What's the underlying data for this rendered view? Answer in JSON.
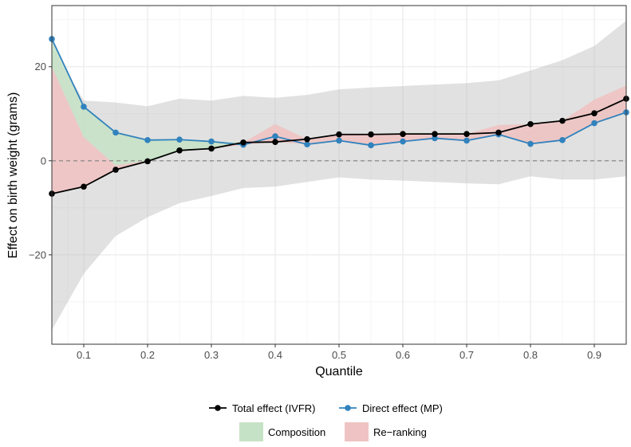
{
  "chart_data": {
    "type": "line",
    "xlabel": "Quantile",
    "ylabel": "Effect on birth weight (grams)",
    "xlim": [
      0.05,
      0.95
    ],
    "ylim": [
      -39,
      33
    ],
    "x_ticks": [
      0.1,
      0.2,
      0.3,
      0.4,
      0.5,
      0.6,
      0.7,
      0.8,
      0.9
    ],
    "x_tick_labels": [
      "0.1",
      "0.2",
      "0.3",
      "0.4",
      "0.5",
      "0.6",
      "0.7",
      "0.8",
      "0.9"
    ],
    "y_ticks": [
      -20,
      0,
      20
    ],
    "y_tick_labels": [
      "−20",
      "0",
      "20"
    ],
    "grid": true,
    "reference_line": {
      "y": 0,
      "style": "dashed"
    },
    "legend_position": "bottom",
    "x": [
      0.05,
      0.1,
      0.15,
      0.2,
      0.25,
      0.3,
      0.35,
      0.4,
      0.45,
      0.5,
      0.55,
      0.6,
      0.65,
      0.7,
      0.75,
      0.8,
      0.85,
      0.9,
      0.95
    ],
    "series": [
      {
        "name": "Total effect (IVFR)",
        "color": "#000000",
        "values": [
          -7.0,
          -5.5,
          -1.9,
          -0.1,
          2.2,
          2.6,
          3.9,
          4.0,
          4.6,
          5.6,
          5.6,
          5.7,
          5.7,
          5.7,
          6.0,
          7.8,
          8.5,
          10.1,
          13.2
        ]
      },
      {
        "name": "Direct effect (MP)",
        "color": "#3182bd",
        "values": [
          25.9,
          11.5,
          6.0,
          4.4,
          4.5,
          4.1,
          3.4,
          5.2,
          3.5,
          4.3,
          3.3,
          4.1,
          4.8,
          4.3,
          5.6,
          3.6,
          4.4,
          8.0,
          10.3
        ]
      }
    ],
    "confidence_band": {
      "color": "#bdbdbd",
      "lower": [
        -36.0,
        -24.0,
        -16.0,
        -12.0,
        -9.0,
        -7.5,
        -5.8,
        -5.5,
        -4.5,
        -3.5,
        -4.0,
        -4.2,
        -4.5,
        -4.8,
        -5.0,
        -3.3,
        -4.0,
        -4.0,
        -3.3
      ],
      "upper": [
        24.0,
        12.8,
        12.4,
        11.6,
        13.2,
        12.8,
        13.8,
        13.4,
        14.0,
        15.2,
        15.6,
        15.9,
        16.2,
        16.5,
        17.1,
        19.2,
        21.4,
        24.4,
        29.8
      ]
    },
    "components": [
      {
        "name": "Composition",
        "color": "#c6e2c6",
        "lower": [
          20.0,
          5.0,
          -1.0,
          0.0,
          2.2,
          2.6,
          3.4,
          4.0,
          3.5,
          4.3,
          3.3,
          4.1,
          4.8,
          4.3,
          5.6,
          3.6,
          4.4,
          8.0,
          10.3
        ],
        "upper": [
          25.9,
          11.5,
          6.0,
          4.4,
          4.5,
          4.1,
          3.9,
          4.0,
          4.6,
          4.3,
          3.3,
          4.1,
          4.8,
          4.3,
          5.6,
          6.5,
          8.5,
          11.0,
          13.2
        ]
      },
      {
        "name": "Re−ranking",
        "color": "#efc3c3",
        "lower": [
          -7.0,
          -5.5,
          -1.9,
          -0.1,
          2.2,
          2.6,
          3.4,
          4.0,
          3.5,
          4.3,
          3.3,
          4.1,
          4.8,
          4.3,
          5.6,
          3.6,
          4.4,
          8.0,
          10.3
        ],
        "upper": [
          20.0,
          5.0,
          -1.0,
          0.0,
          2.2,
          2.6,
          3.9,
          7.8,
          4.6,
          5.6,
          5.6,
          5.7,
          5.7,
          5.7,
          7.6,
          7.8,
          8.5,
          13.0,
          16.0
        ]
      }
    ]
  }
}
